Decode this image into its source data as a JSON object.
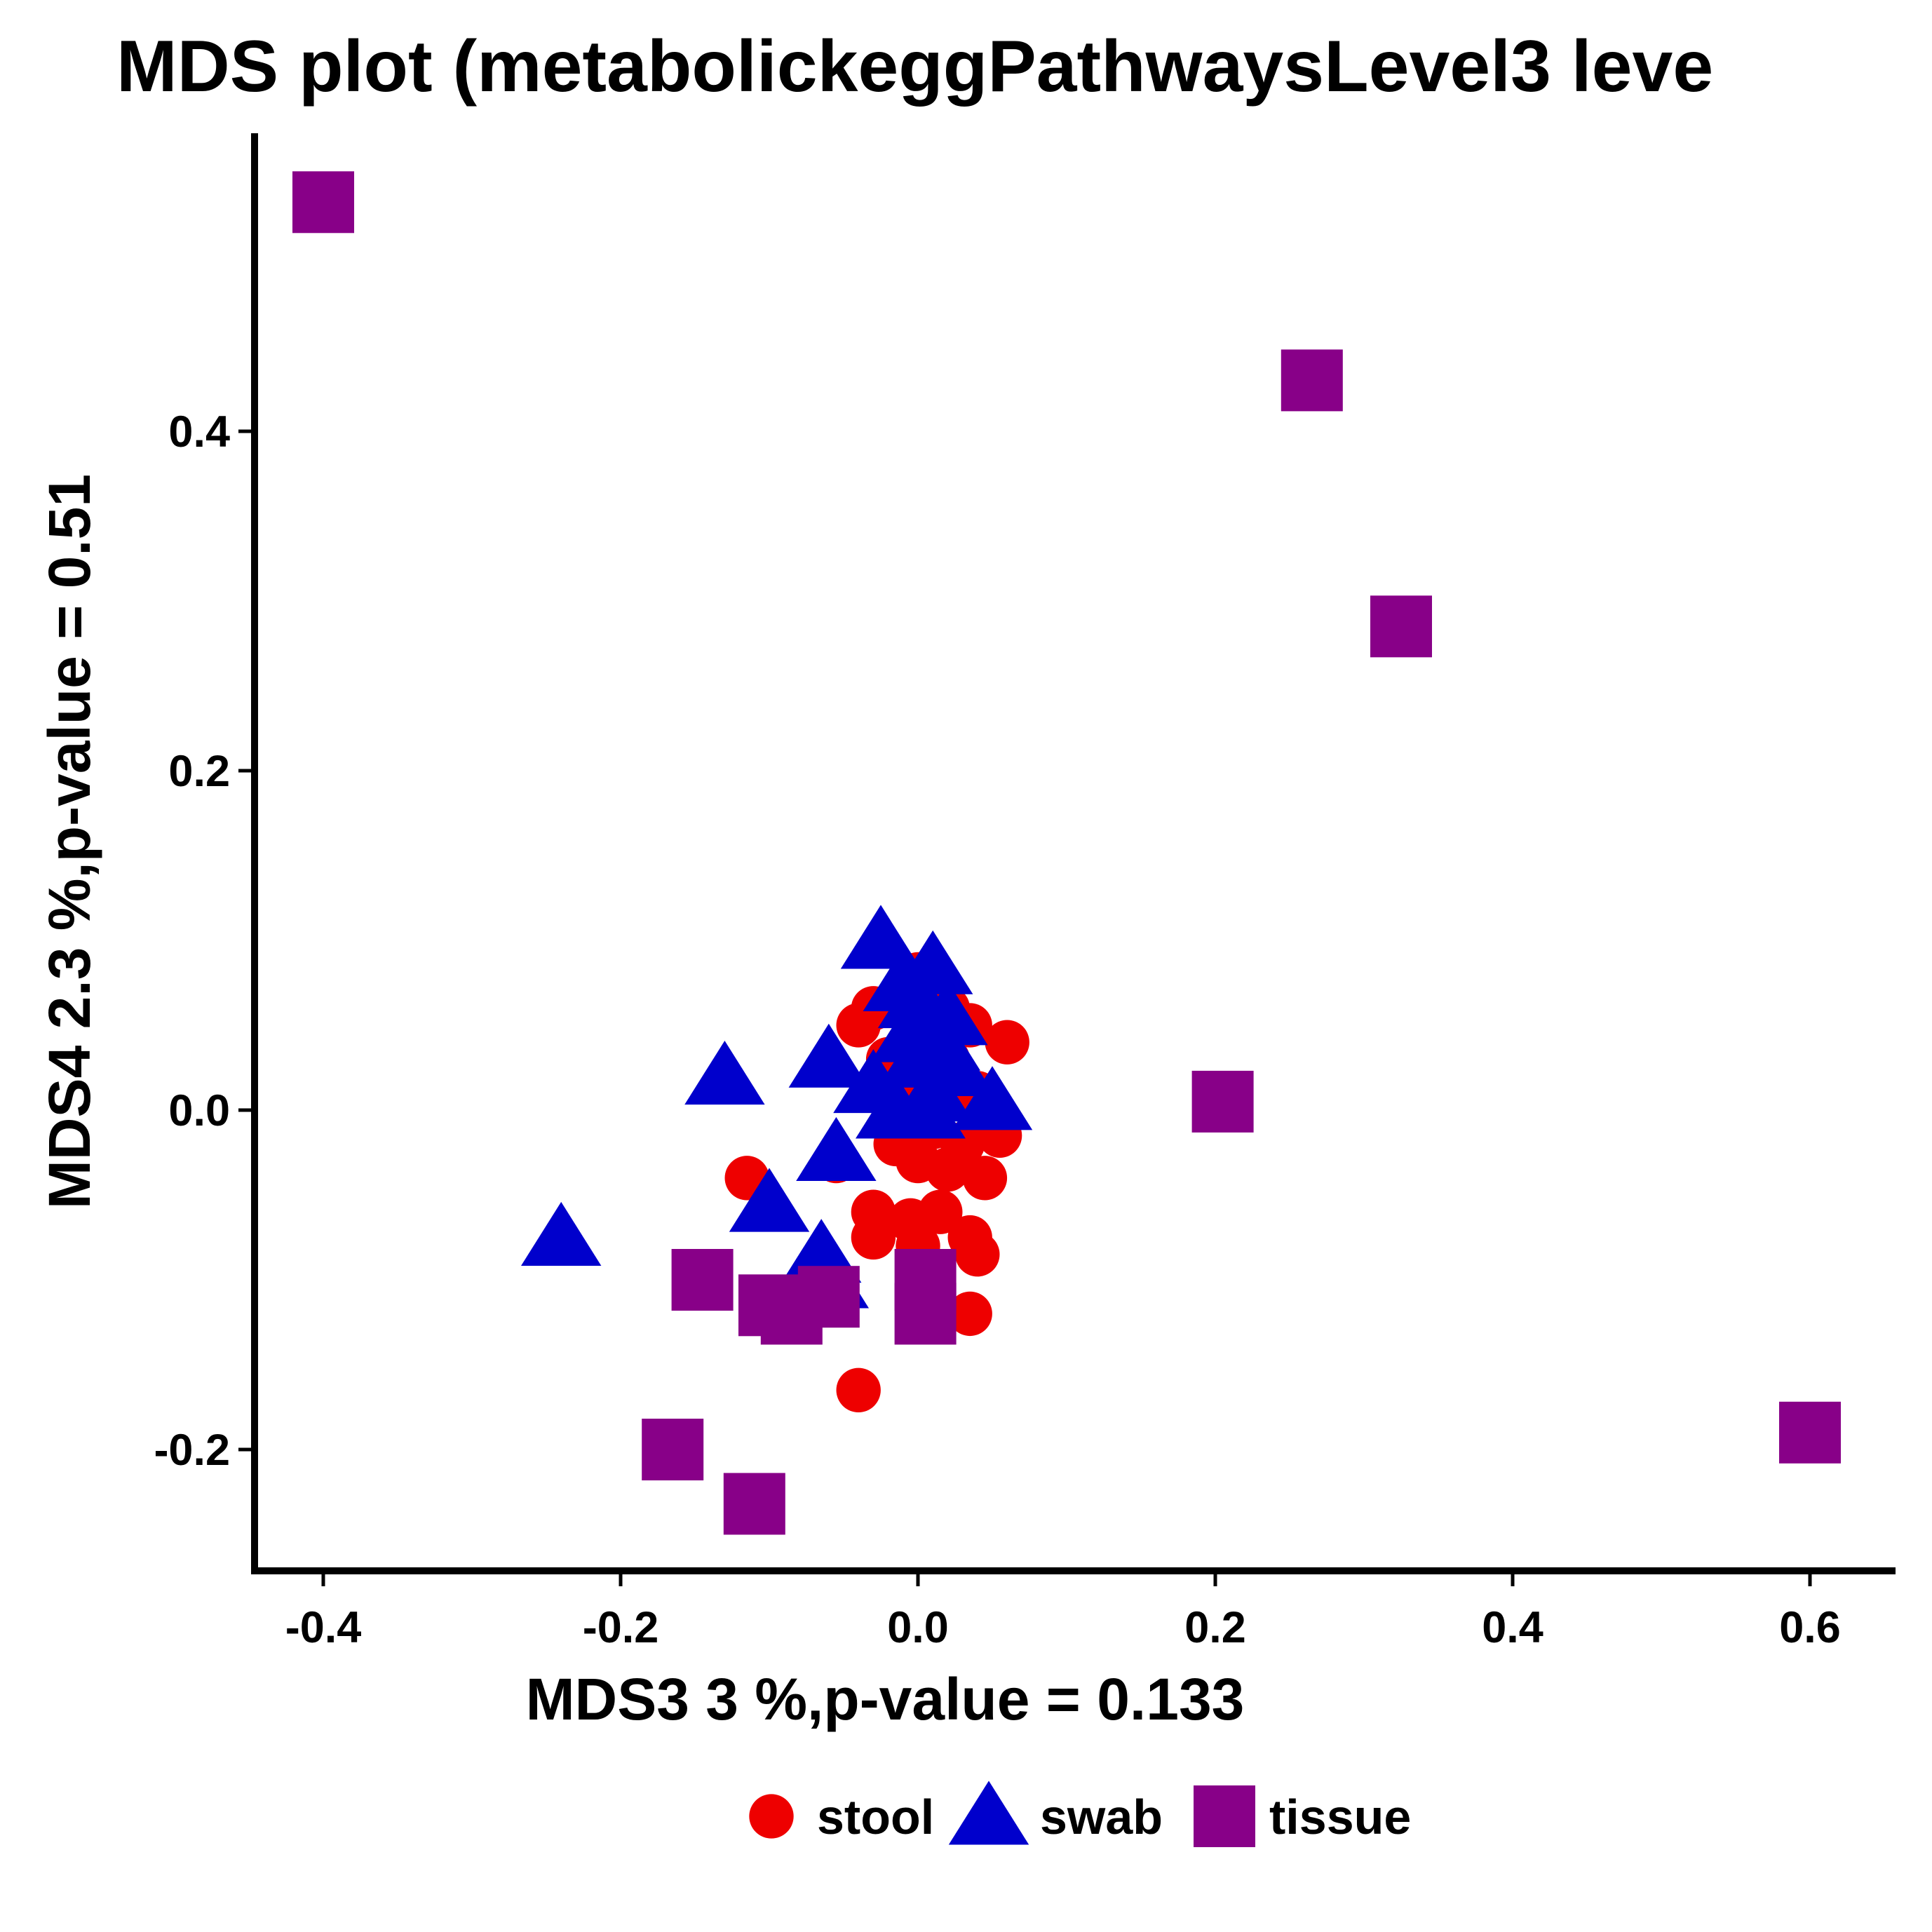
{
  "chart_data": {
    "type": "scatter",
    "title": "MDS plot (metabolickeggPathwaysLevel3 leve",
    "xlabel": "MDS3   3 %,p-value =  0.133",
    "ylabel": "MDS4   2.3 %,p-value =  0.51",
    "xlim": [
      -0.45,
      0.65
    ],
    "ylim": [
      -0.27,
      0.57
    ],
    "x_ticks": [
      "-0.4",
      "-0.2",
      "0.0",
      "0.2",
      "0.4",
      "0.6"
    ],
    "y_ticks": [
      "-0.2",
      "0.0",
      "0.2",
      "0.4"
    ],
    "grid": false,
    "legend_position": "bottom",
    "series": [
      {
        "name": "stool",
        "shape": "circle",
        "color": "#ee0000",
        "points": [
          [
            -0.04,
            0.05
          ],
          [
            -0.03,
            0.06
          ],
          [
            -0.01,
            0.07
          ],
          [
            0.0,
            0.08
          ],
          [
            0.02,
            0.06
          ],
          [
            0.035,
            0.05
          ],
          [
            0.06,
            0.04
          ],
          [
            -0.02,
            0.03
          ],
          [
            0.0,
            0.02
          ],
          [
            0.02,
            0.03
          ],
          [
            0.04,
            0.01
          ],
          [
            -0.01,
            0.0
          ],
          [
            0.01,
            -0.01
          ],
          [
            0.03,
            -0.02
          ],
          [
            0.055,
            -0.015
          ],
          [
            -0.015,
            -0.02
          ],
          [
            0.0,
            -0.03
          ],
          [
            0.02,
            -0.035
          ],
          [
            0.045,
            -0.04
          ],
          [
            -0.115,
            -0.04
          ],
          [
            -0.055,
            -0.03
          ],
          [
            -0.03,
            -0.06
          ],
          [
            -0.005,
            -0.065
          ],
          [
            0.015,
            -0.06
          ],
          [
            -0.03,
            -0.075
          ],
          [
            0.0,
            -0.08
          ],
          [
            0.035,
            -0.075
          ],
          [
            0.04,
            -0.085
          ],
          [
            0.035,
            -0.12
          ],
          [
            -0.04,
            -0.165
          ]
        ]
      },
      {
        "name": "swab",
        "shape": "triangle",
        "color": "#0000cc",
        "points": [
          [
            -0.025,
            0.1
          ],
          [
            0.01,
            0.085
          ],
          [
            -0.01,
            0.075
          ],
          [
            0.0,
            0.065
          ],
          [
            0.02,
            0.055
          ],
          [
            -0.005,
            0.045
          ],
          [
            0.015,
            0.04
          ],
          [
            -0.06,
            0.03
          ],
          [
            -0.13,
            0.02
          ],
          [
            0.0,
            0.03
          ],
          [
            0.025,
            0.025
          ],
          [
            -0.03,
            0.015
          ],
          [
            0.01,
            0.01
          ],
          [
            0.05,
            0.005
          ],
          [
            -0.015,
            0.0
          ],
          [
            0.005,
            0.0
          ],
          [
            -0.055,
            -0.025
          ],
          [
            -0.1,
            -0.055
          ],
          [
            -0.24,
            -0.075
          ],
          [
            -0.065,
            -0.085
          ],
          [
            -0.06,
            -0.1
          ]
        ]
      },
      {
        "name": "tissue",
        "shape": "square",
        "color": "#880088",
        "points": [
          [
            -0.4,
            0.535
          ],
          [
            0.265,
            0.43
          ],
          [
            0.325,
            0.285
          ],
          [
            0.205,
            0.005
          ],
          [
            -0.145,
            -0.1
          ],
          [
            -0.1,
            -0.115
          ],
          [
            -0.085,
            -0.12
          ],
          [
            -0.06,
            -0.11
          ],
          [
            0.005,
            -0.1
          ],
          [
            0.005,
            -0.12
          ],
          [
            -0.165,
            -0.2
          ],
          [
            -0.11,
            -0.232
          ],
          [
            0.6,
            -0.19
          ]
        ]
      }
    ]
  }
}
